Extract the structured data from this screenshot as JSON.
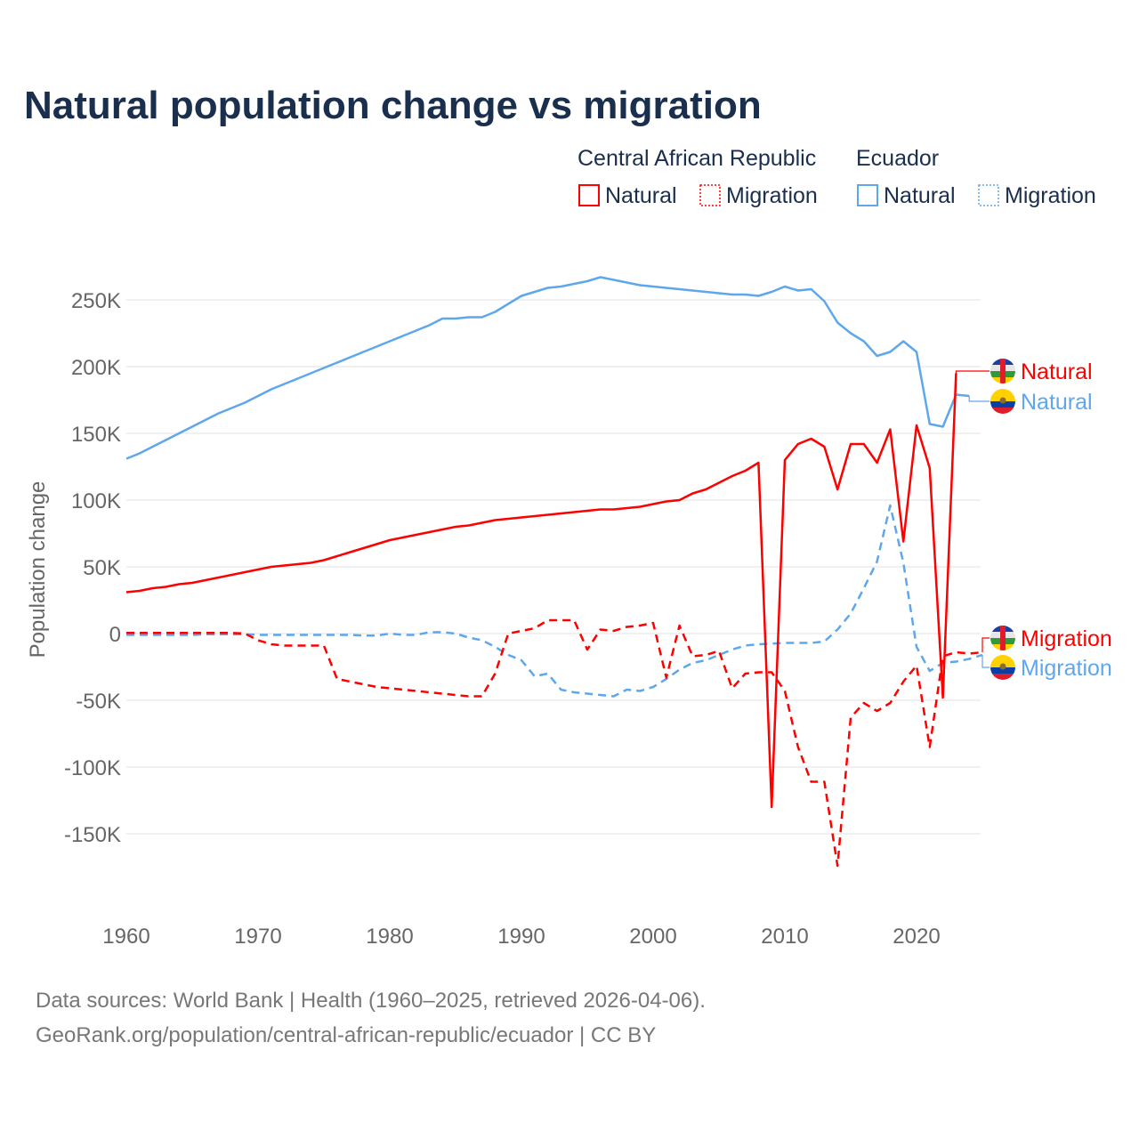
{
  "title": "Natural population change vs migration",
  "legend": {
    "groups": [
      {
        "country": "Central African Republic",
        "color": "#ff0000",
        "items": [
          "Natural",
          "Migration"
        ]
      },
      {
        "country": "Ecuador",
        "color": "#5ea7ec",
        "items": [
          "Natural",
          "Migration"
        ]
      }
    ]
  },
  "footer": {
    "line1": "Data sources: World Bank | Health (1960–2025, retrieved 2026-04-06).",
    "line2": "GeoRank.org/population/central-african-republic/ecuador | CC BY"
  },
  "chart_data": {
    "type": "line",
    "title": "Natural population change vs migration",
    "xlabel": "",
    "ylabel": "Population change",
    "xlim": [
      1960,
      2025
    ],
    "ylim": [
      -180000,
      270000
    ],
    "x_ticks": [
      1960,
      1970,
      1980,
      1990,
      2000,
      2010,
      2020
    ],
    "x_tick_labels": [
      "1960",
      "1970",
      "1980",
      "1990",
      "2000",
      "2010",
      "2020"
    ],
    "y_ticks": [
      -150000,
      -100000,
      -50000,
      0,
      50000,
      100000,
      150000,
      200000,
      250000
    ],
    "y_tick_labels": [
      "-150K",
      "-100K",
      "-50K",
      "0",
      "50K",
      "100K",
      "150K",
      "200K",
      "250K"
    ],
    "grid": true,
    "legend_position": "top-right",
    "start_year": 1960,
    "series": [
      {
        "name": "Ecuador Natural",
        "country": "Ecuador",
        "kind": "Natural",
        "color": "#5ea7ec",
        "dashed": false,
        "end_label": "Natural",
        "unit": "thousands",
        "values": [
          131,
          135,
          140,
          145,
          150,
          155,
          160,
          165,
          169,
          173,
          178,
          183,
          187,
          191,
          195,
          199,
          203,
          207,
          211,
          215,
          219,
          223,
          227,
          231,
          236,
          236,
          237,
          237,
          241,
          247,
          253,
          256,
          259,
          260,
          262,
          264,
          267,
          265,
          263,
          261,
          260,
          259,
          258,
          257,
          256,
          255,
          254,
          254,
          253,
          256,
          260,
          257,
          258,
          249,
          233,
          225,
          219,
          208,
          211,
          219,
          211,
          157,
          155,
          179,
          178,
          null
        ]
      },
      {
        "name": "Ecuador Migration",
        "country": "Ecuador",
        "kind": "Migration",
        "color": "#5ea7ec",
        "dashed": true,
        "end_label": "Migration",
        "unit": "thousands",
        "values": [
          -1,
          -1,
          -1,
          -1,
          -1,
          -1,
          -0.5,
          -0.5,
          -0.5,
          -0.5,
          -1,
          -1,
          -1,
          -1,
          -1,
          -1,
          -1,
          -1,
          -1.5,
          -1.5,
          0,
          -1,
          -1,
          1,
          1,
          0,
          -3,
          -5,
          -10,
          -16,
          -20,
          -32,
          -30,
          -42,
          -44,
          -45,
          -46,
          -47,
          -42,
          -43,
          -40,
          -34,
          -27,
          -22,
          -20,
          -16,
          -12,
          -9,
          -8,
          -7.5,
          -7,
          -7,
          -7,
          -6,
          3,
          15,
          34,
          54,
          96,
          53,
          -10,
          -28,
          -22,
          -21,
          -19,
          -16
        ]
      },
      {
        "name": "Central African Republic Natural",
        "country": "Central African Republic",
        "kind": "Natural",
        "color": "#ff0000",
        "dashed": false,
        "end_label": "Natural",
        "unit": "thousands",
        "values": [
          31,
          32,
          34,
          35,
          37,
          38,
          40,
          42,
          44,
          46,
          48,
          50,
          51,
          52,
          53,
          55,
          58,
          61,
          64,
          67,
          70,
          72,
          74,
          76,
          78,
          80,
          81,
          83,
          85,
          86,
          87,
          88,
          89,
          90,
          91,
          92,
          93,
          93,
          94,
          95,
          97,
          99,
          100,
          105,
          108,
          113,
          118,
          122,
          128,
          -130,
          130,
          142,
          146,
          140,
          108,
          142,
          142,
          128,
          153,
          69,
          156,
          124,
          -48,
          195,
          null,
          null
        ]
      },
      {
        "name": "Central African Republic Migration",
        "country": "Central African Republic",
        "kind": "Migration",
        "color": "#ff0000",
        "dashed": true,
        "end_label": "Migration",
        "unit": "thousands",
        "values": [
          0.5,
          0.5,
          0.5,
          0.5,
          0.5,
          0.5,
          0.5,
          0.5,
          0.5,
          0,
          -5,
          -8,
          -9,
          -9,
          -9,
          -9,
          -34,
          -36,
          -38,
          -40,
          -41,
          -42,
          -43,
          -44,
          -45,
          -46,
          -47,
          -47,
          -30,
          0,
          2,
          4,
          10,
          10,
          10,
          -12,
          3,
          2,
          5,
          6,
          8,
          -33,
          6,
          -17,
          -16,
          -13,
          -41,
          -30,
          -29,
          -29,
          -43,
          -85,
          -111,
          -111,
          -174,
          -63,
          -52,
          -58,
          -52,
          -36,
          -24,
          -85,
          -17,
          -14,
          -15,
          -14
        ]
      }
    ]
  },
  "colors": {
    "title": "#1a2e4e",
    "axis_text": "#666666",
    "grid": "#e6e6e6"
  }
}
